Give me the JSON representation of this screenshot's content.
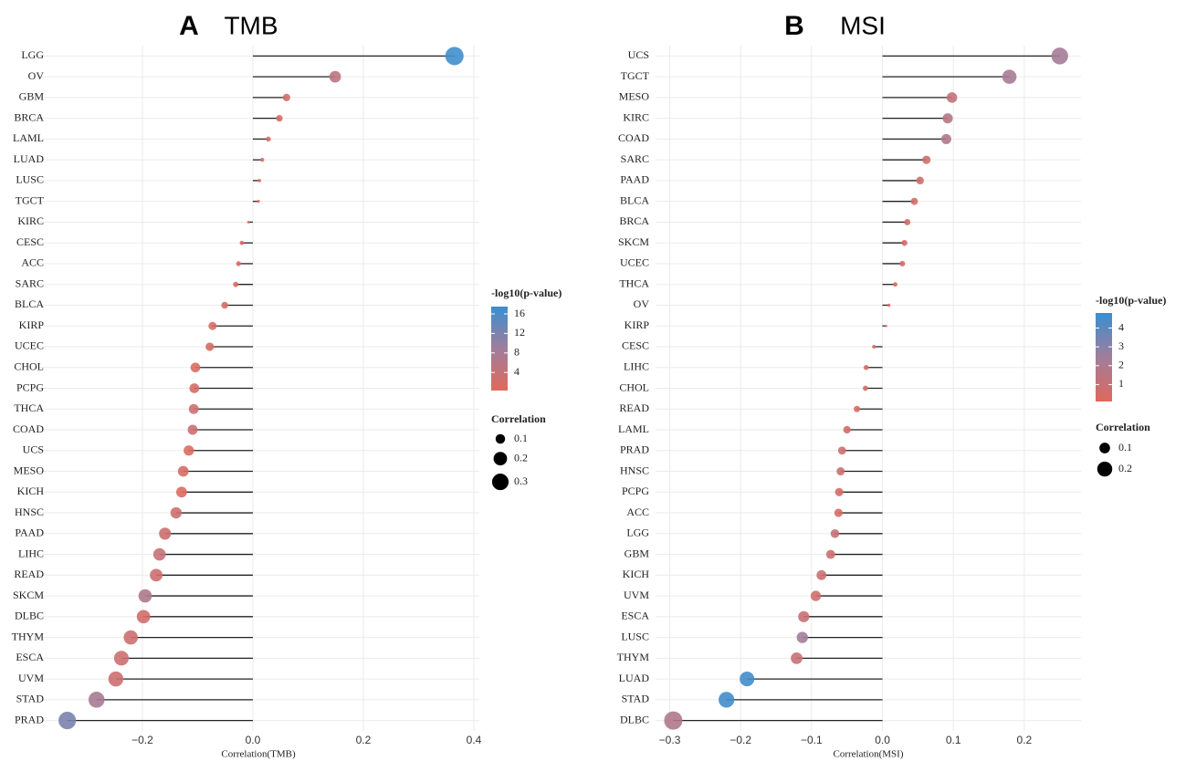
{
  "chart_data": [
    {
      "type": "lollipop",
      "panel_label": "A",
      "title": "TMB",
      "x_label": "Correlation(TMB)",
      "categories": [
        "LGG",
        "OV",
        "GBM",
        "BRCA",
        "LAML",
        "LUAD",
        "LUSC",
        "TGCT",
        "KIRC",
        "CESC",
        "ACC",
        "SARC",
        "BLCA",
        "KIRP",
        "UCEC",
        "CHOL",
        "PCPG",
        "THCA",
        "COAD",
        "UCS",
        "MESO",
        "KICH",
        "HNSC",
        "PAAD",
        "LIHC",
        "READ",
        "SKCM",
        "DLBC",
        "THYM",
        "ESCA",
        "UVM",
        "STAD",
        "PRAD"
      ],
      "values": [
        0.365,
        0.149,
        0.061,
        0.048,
        0.028,
        0.017,
        0.012,
        0.01,
        -0.008,
        -0.02,
        -0.026,
        -0.031,
        -0.051,
        -0.073,
        -0.078,
        -0.104,
        -0.106,
        -0.107,
        -0.109,
        -0.116,
        -0.126,
        -0.129,
        -0.139,
        -0.159,
        -0.169,
        -0.175,
        -0.195,
        -0.198,
        -0.221,
        -0.238,
        -0.248,
        -0.283,
        -0.336
      ],
      "neglog10p": [
        17,
        5,
        2,
        2,
        1.5,
        1,
        0.8,
        0.5,
        0.4,
        0.8,
        0.7,
        1,
        1.5,
        1.5,
        2,
        1,
        2,
        3,
        3,
        1,
        1.5,
        1,
        3,
        3,
        4,
        3,
        7,
        2,
        3,
        3,
        3,
        8,
        12
      ],
      "xlim": [
        -0.39,
        0.41
      ],
      "xticks": [
        {
          "value": -0.2,
          "label": "−0.2"
        },
        {
          "value": 0,
          "label": "0.0"
        },
        0.2,
        0.4
      ],
      "grid": true,
      "color_legend_title": "-log10(p-value)",
      "color_lim": [
        0.3,
        17.5
      ],
      "color_ticks": [
        4,
        8,
        12,
        16
      ],
      "color_scale": [
        "#e0695c",
        "#a07d9b",
        "#3a8fd0"
      ],
      "size_legend_title": "Correlation",
      "size_ticks": [
        0.1,
        0.2,
        0.3
      ]
    },
    {
      "type": "lollipop",
      "panel_label": "B",
      "title": "MSI",
      "x_label": "Correlation(MSI)",
      "categories": [
        "UCS",
        "TGCT",
        "MESO",
        "KIRC",
        "COAD",
        "SARC",
        "PAAD",
        "BLCA",
        "BRCA",
        "SKCM",
        "UCEC",
        "THCA",
        "OV",
        "KIRP",
        "CESC",
        "LIHC",
        "CHOL",
        "READ",
        "LAML",
        "PRAD",
        "HNSC",
        "PCPG",
        "ACC",
        "LGG",
        "GBM",
        "KICH",
        "UVM",
        "ESCA",
        "LUSC",
        "THYM",
        "LUAD",
        "STAD",
        "DLBC"
      ],
      "values": [
        0.25,
        0.179,
        0.098,
        0.092,
        0.09,
        0.062,
        0.053,
        0.045,
        0.035,
        0.031,
        0.028,
        0.018,
        0.009,
        0.005,
        -0.012,
        -0.023,
        -0.024,
        -0.036,
        -0.05,
        -0.057,
        -0.059,
        -0.061,
        -0.062,
        -0.067,
        -0.073,
        -0.086,
        -0.094,
        -0.111,
        -0.113,
        -0.121,
        -0.191,
        -0.22,
        -0.295
      ],
      "neglog10p": [
        2.3,
        2.2,
        1.2,
        1.6,
        1.8,
        0.8,
        0.7,
        0.6,
        0.6,
        0.5,
        0.5,
        0.4,
        0.3,
        0.2,
        0.3,
        0.4,
        0.5,
        0.4,
        0.6,
        0.8,
        0.8,
        0.5,
        0.4,
        1.0,
        0.8,
        0.9,
        0.7,
        1.0,
        2.4,
        1.0,
        4.6,
        4.6,
        1.9
      ],
      "xlim": [
        -0.32,
        0.28
      ],
      "xticks": [
        {
          "value": -0.3,
          "label": "−0.3"
        },
        {
          "value": -0.2,
          "label": "−0.2"
        },
        {
          "value": -0.1,
          "label": "−0.1"
        },
        {
          "value": 0,
          "label": "0.0"
        },
        0.1,
        0.2
      ],
      "grid": true,
      "color_legend_title": "-log10(p-value)",
      "color_lim": [
        0.1,
        4.8
      ],
      "color_ticks": [
        1,
        2,
        3,
        4
      ],
      "color_scale": [
        "#e0695c",
        "#a07d9b",
        "#3a8fd0"
      ],
      "size_legend_title": "Correlation",
      "size_ticks": [
        0.1,
        0.2
      ]
    }
  ]
}
